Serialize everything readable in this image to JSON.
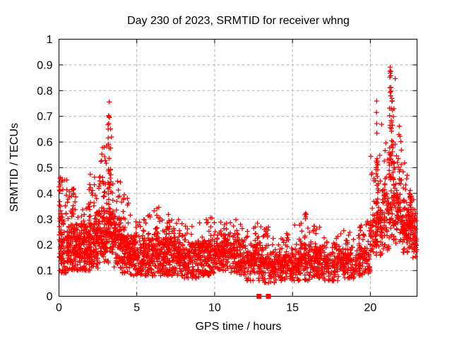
{
  "chart_data": {
    "type": "scatter",
    "title": "Day 230 of 2023, SRMTID for receiver whng",
    "xlabel": "GPS time / hours",
    "ylabel": "SRMTID / TECUs",
    "xlim": [
      0,
      23
    ],
    "ylim": [
      0,
      1
    ],
    "xticks": {
      "values": [
        0,
        5,
        10,
        15,
        20
      ],
      "labels": [
        "0",
        "5",
        "10",
        "15",
        "20"
      ]
    },
    "yticks": {
      "values": [
        0,
        0.1,
        0.2,
        0.3,
        0.4,
        0.5,
        0.6,
        0.7,
        0.8,
        0.9,
        1
      ],
      "labels": [
        "0",
        "0.1",
        "0.2",
        "0.3",
        "0.4",
        "0.5",
        "0.6",
        "0.7",
        "0.8",
        "0.9",
        "1"
      ]
    },
    "grid": true,
    "grid_color": "#b0b0b0",
    "background_color": "#ffffff",
    "marker": "plus",
    "marker_size_px": 7,
    "marker_color": "#ff0000",
    "legend": "none",
    "series_description": "SRMTID scatter: dense baseline band ~0.05-0.35 TECUs across 0-23 h, activity peaks near 0 h (to 0.50), 3.2 h (to 0.77), 20.4 h (to 0.76) and 21.3 h (to 0.93)",
    "peaks": [
      {
        "time_h": 0.1,
        "value": 0.5
      },
      {
        "time_h": 3.2,
        "value": 0.77
      },
      {
        "time_h": 20.4,
        "value": 0.76
      },
      {
        "time_h": 21.3,
        "value": 0.93
      }
    ],
    "zero_value_points": {
      "marker": "filled-square",
      "points": [
        [
          12.85,
          0
        ],
        [
          13.45,
          0
        ]
      ]
    },
    "seed": 20230230,
    "density_bins_format": [
      "t_start_h",
      "t_end_h",
      "n_points",
      "y_min",
      "y_mode",
      "y_max"
    ],
    "density_bins": [
      [
        0.0,
        0.5,
        80,
        0.09,
        0.22,
        0.5
      ],
      [
        0.5,
        1.0,
        90,
        0.1,
        0.2,
        0.43
      ],
      [
        1.0,
        1.5,
        95,
        0.1,
        0.2,
        0.4
      ],
      [
        1.5,
        2.0,
        95,
        0.1,
        0.21,
        0.45
      ],
      [
        2.0,
        2.5,
        95,
        0.11,
        0.22,
        0.48
      ],
      [
        2.5,
        3.0,
        95,
        0.12,
        0.24,
        0.58
      ],
      [
        3.0,
        3.5,
        90,
        0.13,
        0.26,
        0.66
      ],
      [
        3.5,
        4.0,
        85,
        0.11,
        0.22,
        0.45
      ],
      [
        4.0,
        4.5,
        85,
        0.09,
        0.19,
        0.4
      ],
      [
        4.5,
        5.0,
        85,
        0.08,
        0.17,
        0.33
      ],
      [
        5.0,
        5.5,
        70,
        0.08,
        0.16,
        0.3
      ],
      [
        5.5,
        6.0,
        70,
        0.08,
        0.16,
        0.32
      ],
      [
        6.0,
        6.5,
        70,
        0.08,
        0.17,
        0.35
      ],
      [
        6.5,
        7.0,
        70,
        0.08,
        0.17,
        0.33
      ],
      [
        7.0,
        7.5,
        70,
        0.08,
        0.17,
        0.32
      ],
      [
        7.5,
        8.0,
        70,
        0.08,
        0.16,
        0.3
      ],
      [
        8.0,
        8.5,
        65,
        0.07,
        0.15,
        0.28
      ],
      [
        8.5,
        9.0,
        65,
        0.07,
        0.16,
        0.3
      ],
      [
        9.0,
        9.5,
        65,
        0.08,
        0.17,
        0.3
      ],
      [
        9.5,
        10.0,
        65,
        0.08,
        0.17,
        0.31
      ],
      [
        10.0,
        10.5,
        65,
        0.1,
        0.18,
        0.3
      ],
      [
        10.5,
        11.0,
        65,
        0.1,
        0.18,
        0.28
      ],
      [
        11.0,
        11.5,
        62,
        0.09,
        0.17,
        0.3
      ],
      [
        11.5,
        12.0,
        62,
        0.08,
        0.16,
        0.28
      ],
      [
        12.0,
        12.5,
        58,
        0.06,
        0.14,
        0.26
      ],
      [
        12.5,
        13.0,
        58,
        0.06,
        0.14,
        0.3
      ],
      [
        13.0,
        13.5,
        55,
        0.05,
        0.13,
        0.27
      ],
      [
        13.5,
        14.0,
        55,
        0.05,
        0.12,
        0.24
      ],
      [
        14.0,
        14.5,
        55,
        0.06,
        0.13,
        0.24
      ],
      [
        14.5,
        15.0,
        55,
        0.06,
        0.13,
        0.25
      ],
      [
        15.0,
        15.5,
        55,
        0.06,
        0.13,
        0.28
      ],
      [
        15.5,
        16.0,
        55,
        0.06,
        0.14,
        0.33
      ],
      [
        16.0,
        16.5,
        55,
        0.06,
        0.14,
        0.3
      ],
      [
        16.5,
        17.0,
        55,
        0.06,
        0.14,
        0.28
      ],
      [
        17.0,
        17.5,
        50,
        0.06,
        0.13,
        0.26
      ],
      [
        17.5,
        18.0,
        50,
        0.06,
        0.13,
        0.25
      ],
      [
        18.0,
        18.5,
        50,
        0.07,
        0.14,
        0.26
      ],
      [
        18.5,
        19.0,
        50,
        0.07,
        0.14,
        0.28
      ],
      [
        19.0,
        19.5,
        50,
        0.08,
        0.15,
        0.28
      ],
      [
        19.5,
        20.0,
        55,
        0.09,
        0.16,
        0.3
      ],
      [
        20.0,
        20.4,
        55,
        0.14,
        0.25,
        0.55
      ],
      [
        20.4,
        20.8,
        55,
        0.16,
        0.3,
        0.68
      ],
      [
        20.8,
        21.2,
        55,
        0.18,
        0.32,
        0.62
      ],
      [
        21.2,
        21.6,
        70,
        0.22,
        0.4,
        0.9
      ],
      [
        21.6,
        22.0,
        65,
        0.2,
        0.35,
        0.72
      ],
      [
        22.0,
        22.4,
        65,
        0.17,
        0.28,
        0.52
      ],
      [
        22.4,
        22.8,
        70,
        0.15,
        0.27,
        0.42
      ],
      [
        22.8,
        23.0,
        30,
        0.15,
        0.25,
        0.35
      ]
    ],
    "spike_columns_format": [
      "t_center_h",
      "t_halfwidth_h",
      "y_min",
      "y_max",
      "n_points"
    ],
    "spike_columns": [
      [
        0.07,
        0.04,
        0.12,
        0.5,
        16
      ],
      [
        0.9,
        0.05,
        0.15,
        0.42,
        8
      ],
      [
        1.95,
        0.05,
        0.22,
        0.44,
        7
      ],
      [
        2.6,
        0.05,
        0.25,
        0.47,
        6
      ],
      [
        2.95,
        0.05,
        0.3,
        0.58,
        8
      ],
      [
        3.2,
        0.06,
        0.4,
        0.77,
        16
      ],
      [
        3.3,
        0.05,
        0.3,
        0.6,
        8
      ],
      [
        4.15,
        0.05,
        0.2,
        0.4,
        6
      ],
      [
        6.3,
        0.05,
        0.18,
        0.35,
        7
      ],
      [
        7.0,
        0.05,
        0.18,
        0.33,
        6
      ],
      [
        9.7,
        0.05,
        0.16,
        0.31,
        6
      ],
      [
        10.8,
        0.05,
        0.18,
        0.3,
        5
      ],
      [
        12.6,
        0.05,
        0.15,
        0.3,
        6
      ],
      [
        13.3,
        0.05,
        0.12,
        0.27,
        6
      ],
      [
        15.8,
        0.05,
        0.15,
        0.33,
        8
      ],
      [
        16.5,
        0.05,
        0.12,
        0.29,
        7
      ],
      [
        17.6,
        0.05,
        0.12,
        0.26,
        5
      ],
      [
        19.3,
        0.05,
        0.13,
        0.28,
        6
      ],
      [
        20.4,
        0.06,
        0.3,
        0.76,
        16
      ],
      [
        20.45,
        0.05,
        0.2,
        0.5,
        8
      ],
      [
        21.3,
        0.07,
        0.5,
        0.93,
        20
      ],
      [
        21.45,
        0.07,
        0.35,
        0.8,
        12
      ],
      [
        22.55,
        0.06,
        0.22,
        0.42,
        12
      ]
    ]
  }
}
